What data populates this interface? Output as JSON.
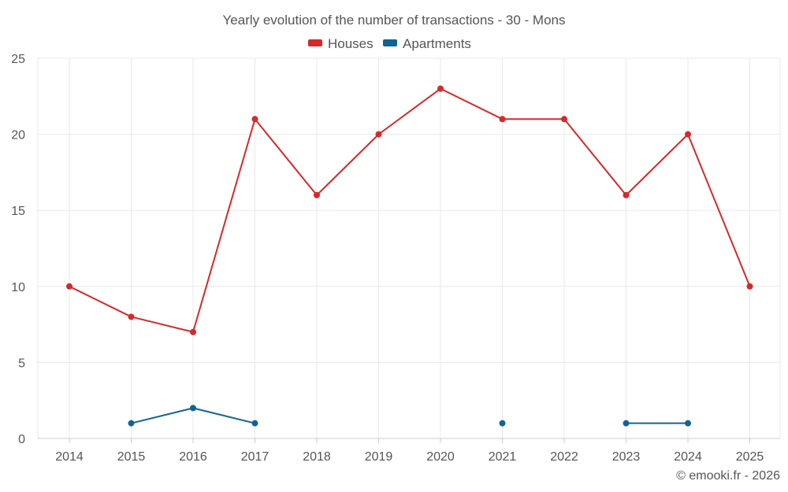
{
  "chart_data": {
    "type": "line",
    "title": "Yearly evolution of the number of transactions - 30 - Mons",
    "categories": [
      "2014",
      "2015",
      "2016",
      "2017",
      "2018",
      "2019",
      "2020",
      "2021",
      "2022",
      "2023",
      "2024",
      "2025"
    ],
    "y_ticks": [
      "0",
      "5",
      "10",
      "15",
      "20",
      "25"
    ],
    "ylim": [
      0,
      25
    ],
    "xlabel": "",
    "ylabel": "",
    "legend_position": "top-center",
    "grid": true,
    "series": [
      {
        "name": "Houses",
        "color": "#d42a2a",
        "values": [
          10,
          8,
          7,
          21,
          16,
          20,
          23,
          21,
          21,
          16,
          20,
          10
        ]
      },
      {
        "name": "Apartments",
        "color": "#0f6496",
        "values": [
          null,
          1,
          2,
          1,
          null,
          null,
          null,
          1,
          null,
          1,
          1,
          null
        ]
      }
    ]
  },
  "footer": {
    "credit": "© emooki.fr - 2026"
  }
}
